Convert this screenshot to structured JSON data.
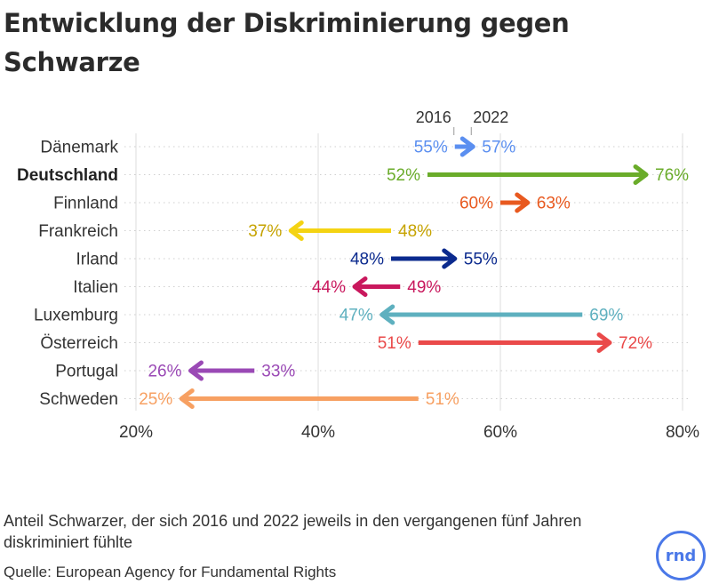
{
  "title": "Entwicklung der Diskriminierung gegen Schwarze",
  "caption": "Anteil Schwarzer, der sich 2016 und 2022 jeweils in den vergangenen fünf Jahren diskriminiert fühlte",
  "source": "Quelle: European Agency for Fundamental Rights",
  "logo_text": "rnd",
  "colors": {
    "logo": "#4a78e8",
    "grid": "#dddddd",
    "text": "#333333"
  },
  "chart_data": {
    "type": "dumbbell-arrow",
    "year_labels": {
      "start": "2016",
      "end": "2022"
    },
    "x_ticks": [
      "20%",
      "40%",
      "60%",
      "80%"
    ],
    "x_tick_values": [
      20,
      40,
      60,
      80
    ],
    "xlim": [
      20,
      80
    ],
    "grid": true,
    "highlight": "Deutschland",
    "rows": [
      {
        "country": "Dänemark",
        "v2016": 55,
        "v2022": 57,
        "label2016": "55%",
        "label2022": "57%",
        "color": "#5b8ff0"
      },
      {
        "country": "Deutschland",
        "v2016": 52,
        "v2022": 76,
        "label2016": "52%",
        "label2022": "76%",
        "color": "#6aac2a"
      },
      {
        "country": "Finnland",
        "v2016": 60,
        "v2022": 63,
        "label2016": "60%",
        "label2022": "63%",
        "color": "#e8591f"
      },
      {
        "country": "Frankreich",
        "v2016": 48,
        "v2022": 37,
        "label2016": "48%",
        "label2022": "37%",
        "color": "#f4d313",
        "labelColor": "#c6a300"
      },
      {
        "country": "Irland",
        "v2016": 48,
        "v2022": 55,
        "label2016": "48%",
        "label2022": "55%",
        "color": "#0b2a8e"
      },
      {
        "country": "Italien",
        "v2016": 49,
        "v2022": 44,
        "label2016": "49%",
        "label2022": "44%",
        "color": "#c9185d"
      },
      {
        "country": "Luxemburg",
        "v2016": 69,
        "v2022": 47,
        "label2016": "69%",
        "label2022": "47%",
        "color": "#5eb0bf"
      },
      {
        "country": "Österreich",
        "v2016": 51,
        "v2022": 72,
        "label2016": "51%",
        "label2022": "72%",
        "color": "#ea4a4a"
      },
      {
        "country": "Portugal",
        "v2016": 33,
        "v2022": 26,
        "label2016": "33%",
        "label2022": "26%",
        "color": "#9a49b5"
      },
      {
        "country": "Schweden",
        "v2016": 51,
        "v2022": 25,
        "label2016": "51%",
        "label2022": "25%",
        "color": "#f7a062"
      }
    ]
  }
}
